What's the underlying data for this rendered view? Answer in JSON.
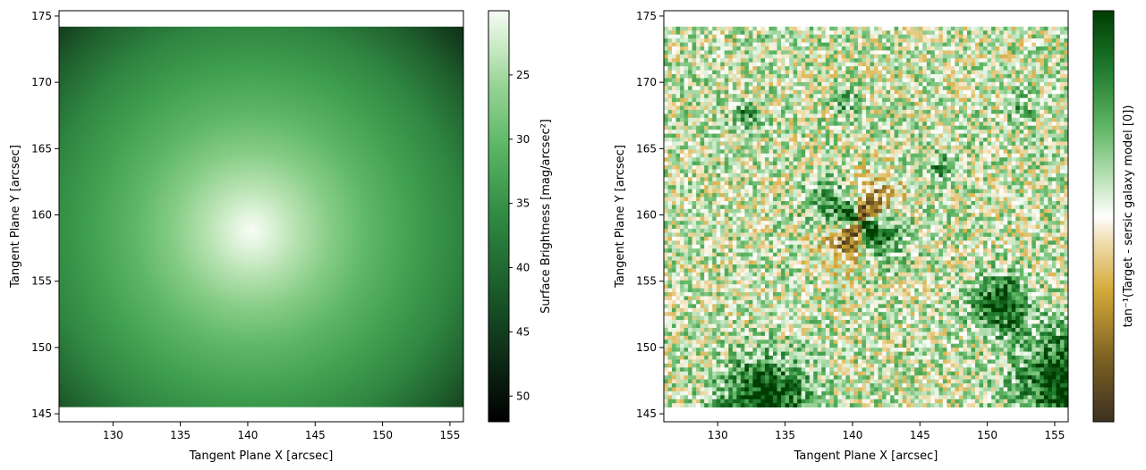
{
  "chart_data": [
    {
      "type": "heatmap",
      "title": "",
      "xlabel": "Tangent Plane X [arcsec]",
      "ylabel": "Tangent Plane Y [arcsec]",
      "xlim": [
        126,
        156
      ],
      "ylim": [
        144.4,
        175.4
      ],
      "image_extent": {
        "x": [
          126,
          156
        ],
        "y": [
          145.5,
          174.2
        ]
      },
      "xticks": [
        130,
        135,
        140,
        145,
        150,
        155
      ],
      "yticks": [
        145,
        150,
        155,
        160,
        165,
        170,
        175
      ],
      "colormap": "Greens_r",
      "colors": [
        "#000000",
        "#0d2a16",
        "#1a5b2a",
        "#2f8a42",
        "#5bb765",
        "#98d496",
        "#d2eece",
        "#f7fcf5"
      ],
      "center": {
        "x": 140.3,
        "y": 158.8
      },
      "colorbar": {
        "label": "Surface Brightness [mag/arcsec²]",
        "range": [
          52,
          20
        ],
        "ticks": [
          25,
          30,
          35,
          40,
          45,
          50
        ],
        "inverted": true
      }
    },
    {
      "type": "heatmap",
      "title": "",
      "xlabel": "Tangent Plane X [arcsec]",
      "ylabel": "Tangent Plane Y [arcsec]",
      "xlim": [
        126,
        156
      ],
      "ylim": [
        144.4,
        175.4
      ],
      "image_extent": {
        "x": [
          126,
          156
        ],
        "y": [
          145.5,
          174.2
        ]
      },
      "xticks": [
        130,
        135,
        140,
        145,
        150,
        155
      ],
      "yticks": [
        145,
        150,
        155,
        160,
        165,
        170,
        175
      ],
      "colormap": "BrBG (olive-white-green)",
      "colors": [
        "#3d3020",
        "#7b5f22",
        "#d4aa3a",
        "#f0deb0",
        "#ffffff",
        "#c3e6c0",
        "#5eb562",
        "#1f7a2e",
        "#003d00"
      ],
      "features": [
        {
          "label": "central residual",
          "x": 140.5,
          "y": 159.5
        },
        {
          "label": "green blob",
          "x": 151,
          "y": 153.3
        },
        {
          "label": "green blob",
          "x": 133.5,
          "y": 146
        },
        {
          "label": "green blob",
          "x": 155.5,
          "y": 147.5
        }
      ],
      "colorbar": {
        "label": "tan⁻¹(Target - sersic galaxy model [0])",
        "ticks": []
      }
    }
  ]
}
